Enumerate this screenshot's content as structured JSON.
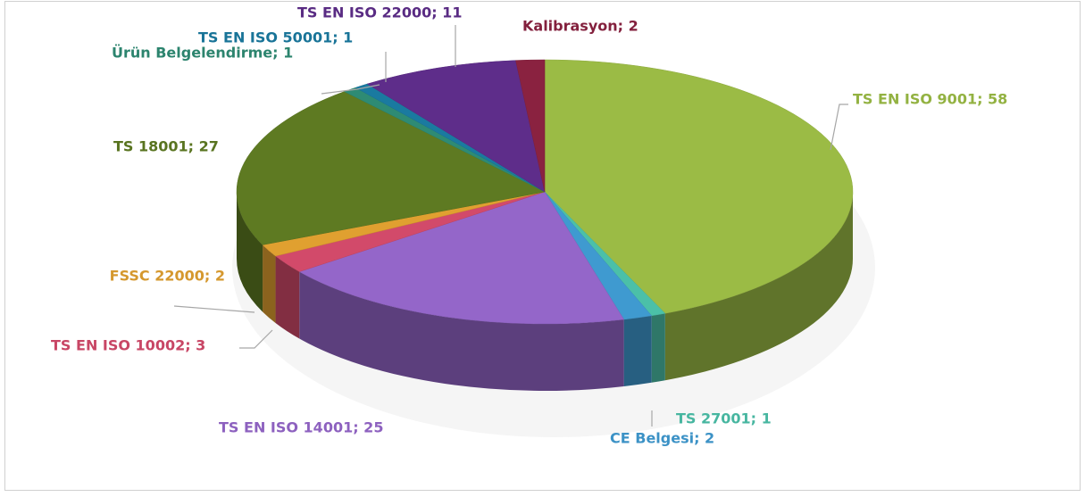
{
  "chart_data": {
    "type": "pie3d",
    "values": [
      58,
      1,
      2,
      25,
      3,
      2,
      27,
      1,
      1,
      11,
      2
    ],
    "value_labels": [
      "TS EN ISO 9001; 58",
      "TS 27001; 1",
      "CE Belgesi; 2",
      "TS EN ISO 14001; 25",
      "TS EN ISO 10002; 3",
      "FSSC 22000; 2",
      "TS 18001; 27",
      "Ürün Belgelendirme; 1",
      "TS EN ISO 50001; 1",
      "TS EN ISO 22000; 11",
      "Kalibrasyon; 2"
    ],
    "colors": [
      "#9bbb45",
      "#4bc0a8",
      "#3f9ad0",
      "#9466c9",
      "#d24a6a",
      "#e0a030",
      "#5e7a22",
      "#2e8b74",
      "#1a7aa0",
      "#5e2d8a",
      "#8a2240"
    ]
  }
}
